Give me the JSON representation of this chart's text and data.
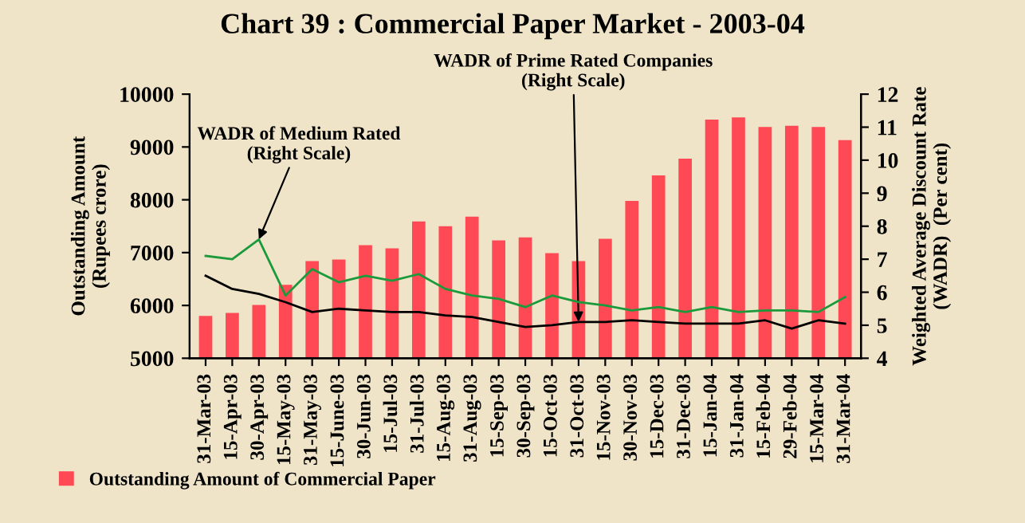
{
  "chart_data": {
    "type": "bar",
    "title": "Chart 39 : Commercial Paper Market - 2003-04",
    "ylabel": "Outstanding Amount\n(Rupees crore)",
    "y2label": "Weighted Average Discount Rate\n(WADR)  (Per cent)",
    "categories": [
      "31-Mar-03",
      "15-Apr-03",
      "30-Apr-03",
      "15-May-03",
      "31-May-03",
      "15-June-03",
      "30-Jun-03",
      "15-Jul-03",
      "31-Jul-03",
      "15-Aug-03",
      "31-Aug-03",
      "15-Sep-03",
      "30-Sep-03",
      "15-Oct-03",
      "31-Oct-03",
      "15-Nov-03",
      "30-Nov-03",
      "15-Dec-03",
      "31-Dec-03",
      "15-Jan-04",
      "31-Jan-04",
      "15-Feb-04",
      "29-Feb-04",
      "15-Mar-04",
      "31-Mar-04"
    ],
    "series": [
      {
        "name": "Outstanding Amount of Commercial Paper",
        "color": "#ff4a55",
        "values": [
          5800,
          5860,
          6010,
          6390,
          6840,
          6870,
          7140,
          7080,
          7590,
          7500,
          7680,
          7230,
          7290,
          6990,
          6840,
          7260,
          7980,
          8460,
          8780,
          9520,
          9560,
          9380,
          9400,
          9380,
          9130
        ]
      },
      {
        "type": "line",
        "axis": "y2",
        "color": "#1a9a3a",
        "values": [
          7.1,
          7.0,
          7.6,
          5.9,
          6.7,
          6.3,
          6.5,
          6.35,
          6.55,
          6.1,
          5.9,
          5.8,
          5.55,
          5.9,
          5.7,
          5.6,
          5.45,
          5.55,
          5.4,
          5.55,
          5.4,
          5.45,
          5.45,
          5.4,
          5.85
        ]
      },
      {
        "type": "line",
        "axis": "y2",
        "color": "#000000",
        "values": [
          6.5,
          6.1,
          5.95,
          5.7,
          5.4,
          5.5,
          5.45,
          5.4,
          5.4,
          5.3,
          5.25,
          5.1,
          4.95,
          5.0,
          5.1,
          5.1,
          5.15,
          5.1,
          5.05,
          5.05,
          5.05,
          5.15,
          4.9,
          5.15,
          5.05
        ]
      }
    ],
    "ylim": [
      5000,
      10000
    ],
    "yticks": [
      5000,
      6000,
      7000,
      8000,
      9000,
      10000
    ],
    "y2lim": [
      4,
      12
    ],
    "y2ticks": [
      4,
      5,
      6,
      7,
      8,
      9,
      10,
      11,
      12
    ],
    "annotations": [
      {
        "text": "WADR of Medium Rated\n(Right Scale)",
        "x": "30-Apr-03",
        "y": 7250
      },
      {
        "text": "WADR of Prime Rated Companies\n(Right Scale)",
        "x": "31-Oct-03",
        "y": 5690
      }
    ],
    "legend": "bottom left",
    "grid": false,
    "marker": "none",
    "line_style": "solid"
  }
}
